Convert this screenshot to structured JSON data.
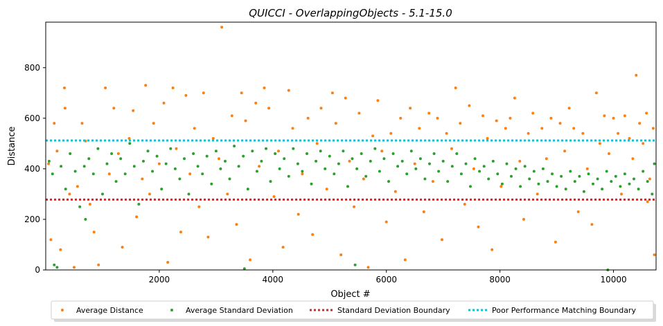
{
  "chart_data": {
    "type": "scatter",
    "title": "QUICCI - OverlappingObjects - 5.1-15.0",
    "xlabel": "Object #",
    "ylabel": "Distance",
    "xlim": [
      0,
      10750
    ],
    "ylim": [
      0,
      980
    ],
    "x_ticks": [
      2000,
      4000,
      6000,
      8000,
      10000
    ],
    "y_ticks": [
      0,
      200,
      400,
      600,
      800
    ],
    "grid": false,
    "legend_position": "bottom-center",
    "series": [
      {
        "name": "Average Distance",
        "color": "#ff7f0e",
        "marker": "dot",
        "points": [
          [
            50,
            420
          ],
          [
            90,
            120
          ],
          [
            150,
            580
          ],
          [
            200,
            470
          ],
          [
            260,
            80
          ],
          [
            330,
            720
          ],
          [
            340,
            640
          ],
          [
            420,
            300
          ],
          [
            500,
            10
          ],
          [
            560,
            330
          ],
          [
            640,
            580
          ],
          [
            700,
            510
          ],
          [
            780,
            260
          ],
          [
            850,
            150
          ],
          [
            930,
            20
          ],
          [
            1050,
            720
          ],
          [
            1120,
            380
          ],
          [
            1200,
            640
          ],
          [
            1280,
            460
          ],
          [
            1350,
            90
          ],
          [
            1470,
            520
          ],
          [
            1540,
            630
          ],
          [
            1600,
            210
          ],
          [
            1700,
            360
          ],
          [
            1760,
            730
          ],
          [
            1830,
            300
          ],
          [
            1900,
            580
          ],
          [
            2000,
            420
          ],
          [
            2080,
            660
          ],
          [
            2150,
            30
          ],
          [
            2240,
            720
          ],
          [
            2300,
            480
          ],
          [
            2380,
            150
          ],
          [
            2470,
            690
          ],
          [
            2540,
            380
          ],
          [
            2620,
            560
          ],
          [
            2700,
            250
          ],
          [
            2780,
            700
          ],
          [
            2860,
            130
          ],
          [
            2950,
            520
          ],
          [
            3050,
            440
          ],
          [
            3100,
            960
          ],
          [
            3200,
            300
          ],
          [
            3280,
            610
          ],
          [
            3360,
            180
          ],
          [
            3450,
            700
          ],
          [
            3520,
            590
          ],
          [
            3600,
            40
          ],
          [
            3700,
            660
          ],
          [
            3760,
            410
          ],
          [
            3850,
            720
          ],
          [
            3930,
            640
          ],
          [
            4020,
            290
          ],
          [
            4100,
            470
          ],
          [
            4180,
            90
          ],
          [
            4280,
            710
          ],
          [
            4350,
            560
          ],
          [
            4450,
            220
          ],
          [
            4520,
            380
          ],
          [
            4620,
            600
          ],
          [
            4700,
            140
          ],
          [
            4780,
            500
          ],
          [
            4850,
            640
          ],
          [
            4950,
            320
          ],
          [
            5050,
            700
          ],
          [
            5110,
            580
          ],
          [
            5200,
            60
          ],
          [
            5280,
            680
          ],
          [
            5350,
            430
          ],
          [
            5430,
            250
          ],
          [
            5520,
            620
          ],
          [
            5600,
            360
          ],
          [
            5680,
            10
          ],
          [
            5760,
            530
          ],
          [
            5850,
            670
          ],
          [
            5920,
            470
          ],
          [
            6000,
            190
          ],
          [
            6080,
            540
          ],
          [
            6160,
            310
          ],
          [
            6250,
            600
          ],
          [
            6330,
            40
          ],
          [
            6420,
            640
          ],
          [
            6500,
            420
          ],
          [
            6580,
            560
          ],
          [
            6660,
            230
          ],
          [
            6750,
            620
          ],
          [
            6820,
            350
          ],
          [
            6900,
            600
          ],
          [
            6980,
            120
          ],
          [
            7060,
            540
          ],
          [
            7150,
            480
          ],
          [
            7220,
            720
          ],
          [
            7300,
            580
          ],
          [
            7380,
            260
          ],
          [
            7460,
            650
          ],
          [
            7540,
            400
          ],
          [
            7620,
            170
          ],
          [
            7700,
            610
          ],
          [
            7780,
            520
          ],
          [
            7860,
            80
          ],
          [
            7940,
            590
          ],
          [
            8020,
            330
          ],
          [
            8100,
            560
          ],
          [
            8180,
            600
          ],
          [
            8260,
            680
          ],
          [
            8350,
            430
          ],
          [
            8420,
            200
          ],
          [
            8500,
            540
          ],
          [
            8580,
            620
          ],
          [
            8660,
            300
          ],
          [
            8740,
            560
          ],
          [
            8820,
            440
          ],
          [
            8900,
            600
          ],
          [
            8980,
            110
          ],
          [
            9060,
            580
          ],
          [
            9140,
            470
          ],
          [
            9220,
            640
          ],
          [
            9300,
            560
          ],
          [
            9380,
            230
          ],
          [
            9460,
            540
          ],
          [
            9540,
            400
          ],
          [
            9620,
            180
          ],
          [
            9700,
            700
          ],
          [
            9760,
            500
          ],
          [
            9840,
            610
          ],
          [
            9920,
            460
          ],
          [
            10000,
            600
          ],
          [
            10080,
            540
          ],
          [
            10140,
            300
          ],
          [
            10200,
            610
          ],
          [
            10280,
            520
          ],
          [
            10340,
            440
          ],
          [
            10400,
            770
          ],
          [
            10460,
            580
          ],
          [
            10520,
            500
          ],
          [
            10580,
            620
          ],
          [
            10640,
            360
          ],
          [
            10700,
            560
          ],
          [
            10720,
            60
          ],
          [
            10600,
            270
          ]
        ]
      },
      {
        "name": "Average Standard Deviation",
        "color": "#2ca02c",
        "marker": "dot",
        "points": [
          [
            60,
            430
          ],
          [
            120,
            380
          ],
          [
            200,
            10
          ],
          [
            270,
            410
          ],
          [
            350,
            320
          ],
          [
            430,
            460
          ],
          [
            520,
            390
          ],
          [
            600,
            250
          ],
          [
            680,
            410
          ],
          [
            760,
            440
          ],
          [
            840,
            380
          ],
          [
            920,
            480
          ],
          [
            1000,
            300
          ],
          [
            1080,
            420
          ],
          [
            1160,
            460
          ],
          [
            1240,
            350
          ],
          [
            1320,
            440
          ],
          [
            1400,
            380
          ],
          [
            1480,
            500
          ],
          [
            1560,
            410
          ],
          [
            1640,
            260
          ],
          [
            1720,
            430
          ],
          [
            1800,
            470
          ],
          [
            1880,
            390
          ],
          [
            1960,
            450
          ],
          [
            2040,
            320
          ],
          [
            2120,
            420
          ],
          [
            2200,
            480
          ],
          [
            2280,
            400
          ],
          [
            2360,
            360
          ],
          [
            2440,
            440
          ],
          [
            2520,
            300
          ],
          [
            2600,
            460
          ],
          [
            2680,
            410
          ],
          [
            2760,
            380
          ],
          [
            2840,
            450
          ],
          [
            2920,
            340
          ],
          [
            3000,
            470
          ],
          [
            3080,
            400
          ],
          [
            3160,
            430
          ],
          [
            3240,
            360
          ],
          [
            3320,
            490
          ],
          [
            3400,
            410
          ],
          [
            3480,
            450
          ],
          [
            3560,
            320
          ],
          [
            3640,
            470
          ],
          [
            3720,
            390
          ],
          [
            3800,
            430
          ],
          [
            3880,
            480
          ],
          [
            3960,
            350
          ],
          [
            4040,
            460
          ],
          [
            4120,
            400
          ],
          [
            4200,
            440
          ],
          [
            4280,
            370
          ],
          [
            4360,
            480
          ],
          [
            4440,
            420
          ],
          [
            4520,
            390
          ],
          [
            4600,
            460
          ],
          [
            4680,
            340
          ],
          [
            4760,
            430
          ],
          [
            4840,
            470
          ],
          [
            4920,
            400
          ],
          [
            5000,
            450
          ],
          [
            5080,
            380
          ],
          [
            5160,
            420
          ],
          [
            5240,
            470
          ],
          [
            5320,
            330
          ],
          [
            5400,
            440
          ],
          [
            5480,
            400
          ],
          [
            5560,
            460
          ],
          [
            5640,
            370
          ],
          [
            5720,
            430
          ],
          [
            5800,
            480
          ],
          [
            5880,
            390
          ],
          [
            5960,
            440
          ],
          [
            6040,
            350
          ],
          [
            6120,
            460
          ],
          [
            6200,
            410
          ],
          [
            6280,
            430
          ],
          [
            6360,
            380
          ],
          [
            6440,
            470
          ],
          [
            6520,
            400
          ],
          [
            6600,
            440
          ],
          [
            6680,
            360
          ],
          [
            6760,
            420
          ],
          [
            6840,
            460
          ],
          [
            6920,
            390
          ],
          [
            7000,
            430
          ],
          [
            7080,
            350
          ],
          [
            7160,
            410
          ],
          [
            7240,
            460
          ],
          [
            7320,
            380
          ],
          [
            7400,
            420
          ],
          [
            7480,
            330
          ],
          [
            7560,
            440
          ],
          [
            7640,
            390
          ],
          [
            7720,
            410
          ],
          [
            7800,
            360
          ],
          [
            7880,
            430
          ],
          [
            7960,
            380
          ],
          [
            8040,
            340
          ],
          [
            8120,
            420
          ],
          [
            8200,
            370
          ],
          [
            8280,
            400
          ],
          [
            8360,
            330
          ],
          [
            8440,
            410
          ],
          [
            8520,
            360
          ],
          [
            8600,
            390
          ],
          [
            8680,
            340
          ],
          [
            8760,
            400
          ],
          [
            8840,
            350
          ],
          [
            8920,
            380
          ],
          [
            9000,
            330
          ],
          [
            9080,
            370
          ],
          [
            9160,
            320
          ],
          [
            9240,
            390
          ],
          [
            9320,
            350
          ],
          [
            9400,
            370
          ],
          [
            9480,
            310
          ],
          [
            9560,
            380
          ],
          [
            9640,
            340
          ],
          [
            9720,
            360
          ],
          [
            9800,
            320
          ],
          [
            9880,
            390
          ],
          [
            9960,
            350
          ],
          [
            10040,
            370
          ],
          [
            10120,
            330
          ],
          [
            10200,
            380
          ],
          [
            10280,
            340
          ],
          [
            10360,
            360
          ],
          [
            10440,
            320
          ],
          [
            10520,
            390
          ],
          [
            10600,
            350
          ],
          [
            10680,
            300
          ],
          [
            10720,
            420
          ],
          [
            150,
            20
          ],
          [
            5450,
            20
          ],
          [
            9900,
            0
          ],
          [
            3500,
            5
          ],
          [
            700,
            200
          ]
        ]
      }
    ],
    "boundaries": [
      {
        "name": "Standard Deviation Boundary",
        "color": "#d62728",
        "style": "dotted",
        "y": 278
      },
      {
        "name": "Poor Performance Matching Boundary",
        "color": "#17becf",
        "style": "dotted",
        "y": 512
      }
    ]
  }
}
